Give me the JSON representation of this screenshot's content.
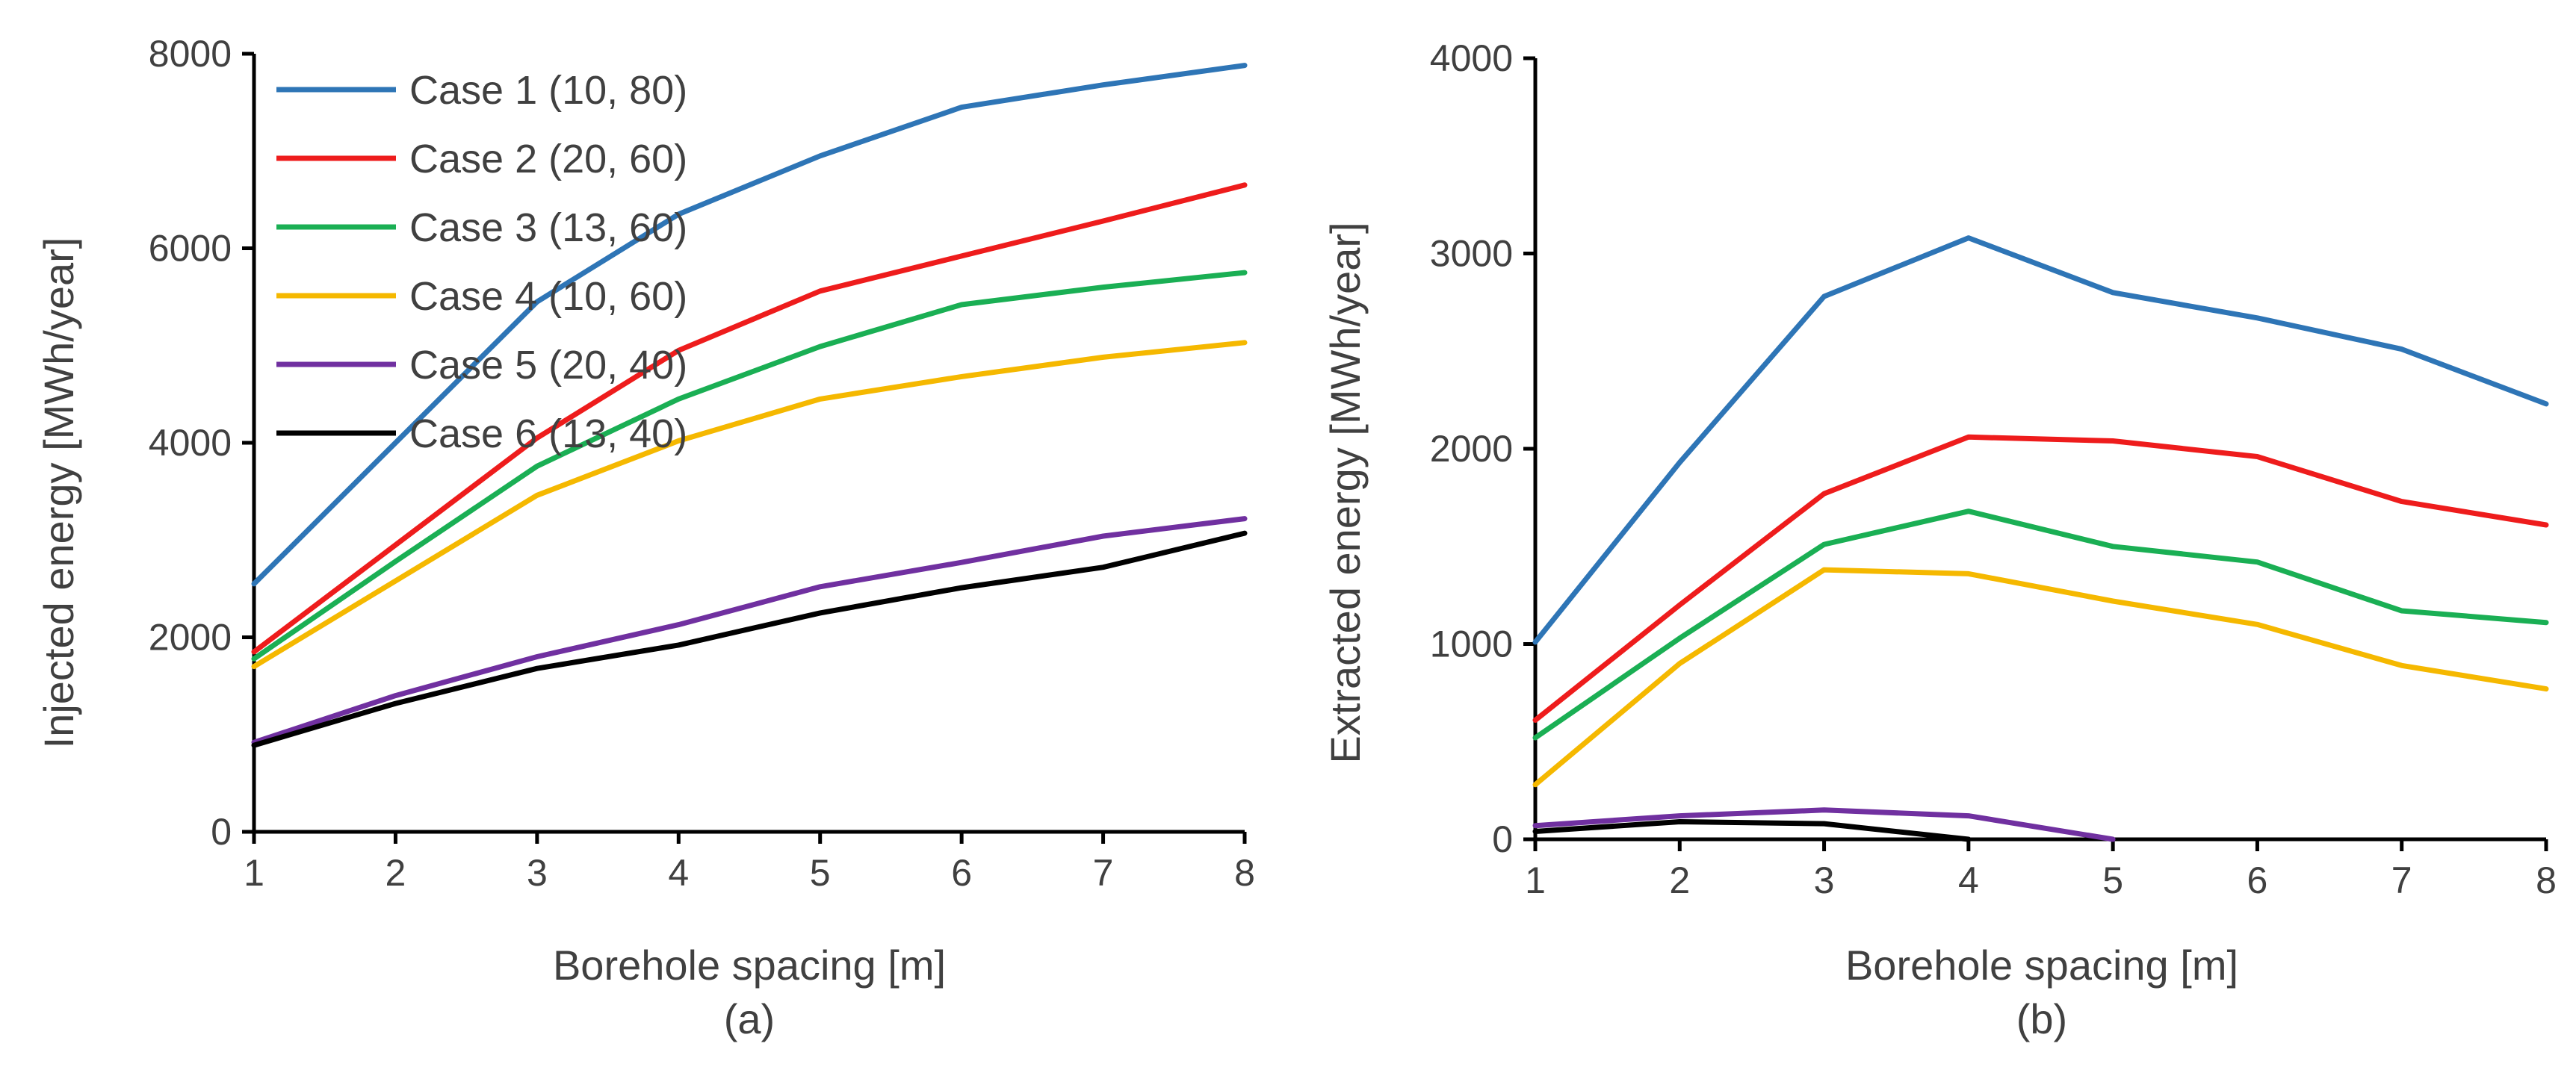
{
  "chart_data": [
    {
      "type": "line",
      "panel_label": "(a)",
      "xlabel": "Borehole spacing [m]",
      "ylabel": "Injected energy [MWh/year]",
      "x": [
        1,
        2,
        3,
        4,
        5,
        6,
        7,
        8
      ],
      "xlim": [
        1,
        8
      ],
      "ylim": [
        0,
        8000
      ],
      "yticks": [
        0,
        2000,
        4000,
        6000,
        8000
      ],
      "legend": "top-left",
      "grid": false,
      "series": [
        {
          "name": "Case 1 (10, 80)",
          "color": "#2E75B6",
          "values": [
            2550,
            4000,
            5450,
            6350,
            6950,
            7450,
            7680,
            7880
          ]
        },
        {
          "name": "Case 2 (20, 60)",
          "color": "#EE1C1C",
          "values": [
            1850,
            2950,
            4050,
            4950,
            5560,
            5920,
            6280,
            6650
          ]
        },
        {
          "name": "Case 3 (13, 60)",
          "color": "#1AAF54",
          "values": [
            1780,
            2780,
            3760,
            4450,
            4990,
            5420,
            5600,
            5750
          ]
        },
        {
          "name": "Case 4 (10, 60)",
          "color": "#F5B800",
          "values": [
            1700,
            2580,
            3460,
            4020,
            4450,
            4680,
            4880,
            5030
          ]
        },
        {
          "name": "Case 5 (20, 40)",
          "color": "#7030A0",
          "values": [
            920,
            1400,
            1800,
            2130,
            2520,
            2770,
            3040,
            3220
          ]
        },
        {
          "name": "Case 6 (13, 40)",
          "color": "#000000",
          "values": [
            890,
            1320,
            1680,
            1920,
            2250,
            2510,
            2720,
            3070
          ]
        }
      ]
    },
    {
      "type": "line",
      "panel_label": "(b)",
      "xlabel": "Borehole spacing [m]",
      "ylabel": "Extracted energy [MWh/year]",
      "x": [
        1,
        2,
        3,
        4,
        5,
        6,
        7,
        8
      ],
      "xlim": [
        1,
        8
      ],
      "ylim": [
        0,
        4000
      ],
      "yticks": [
        0,
        1000,
        2000,
        3000,
        4000
      ],
      "grid": false,
      "series": [
        {
          "name": "Case 1 (10, 80)",
          "color": "#2E75B6",
          "values": [
            1010,
            1930,
            2780,
            3080,
            2800,
            2670,
            2510,
            2230
          ]
        },
        {
          "name": "Case 2 (20, 60)",
          "color": "#EE1C1C",
          "values": [
            610,
            1200,
            1770,
            2060,
            2040,
            1960,
            1730,
            1610
          ]
        },
        {
          "name": "Case 3 (13, 60)",
          "color": "#1AAF54",
          "values": [
            520,
            1030,
            1510,
            1680,
            1500,
            1420,
            1170,
            1110
          ]
        },
        {
          "name": "Case 4 (10, 60)",
          "color": "#F5B800",
          "values": [
            280,
            900,
            1380,
            1360,
            1220,
            1100,
            890,
            770
          ]
        },
        {
          "name": "Case 5 (20, 40)",
          "color": "#7030A0",
          "values": [
            70,
            120,
            150,
            120,
            0,
            null,
            null,
            null
          ]
        },
        {
          "name": "Case 6 (13, 40)",
          "color": "#000000",
          "values": [
            40,
            90,
            80,
            0,
            null,
            null,
            null,
            null
          ]
        }
      ]
    }
  ]
}
